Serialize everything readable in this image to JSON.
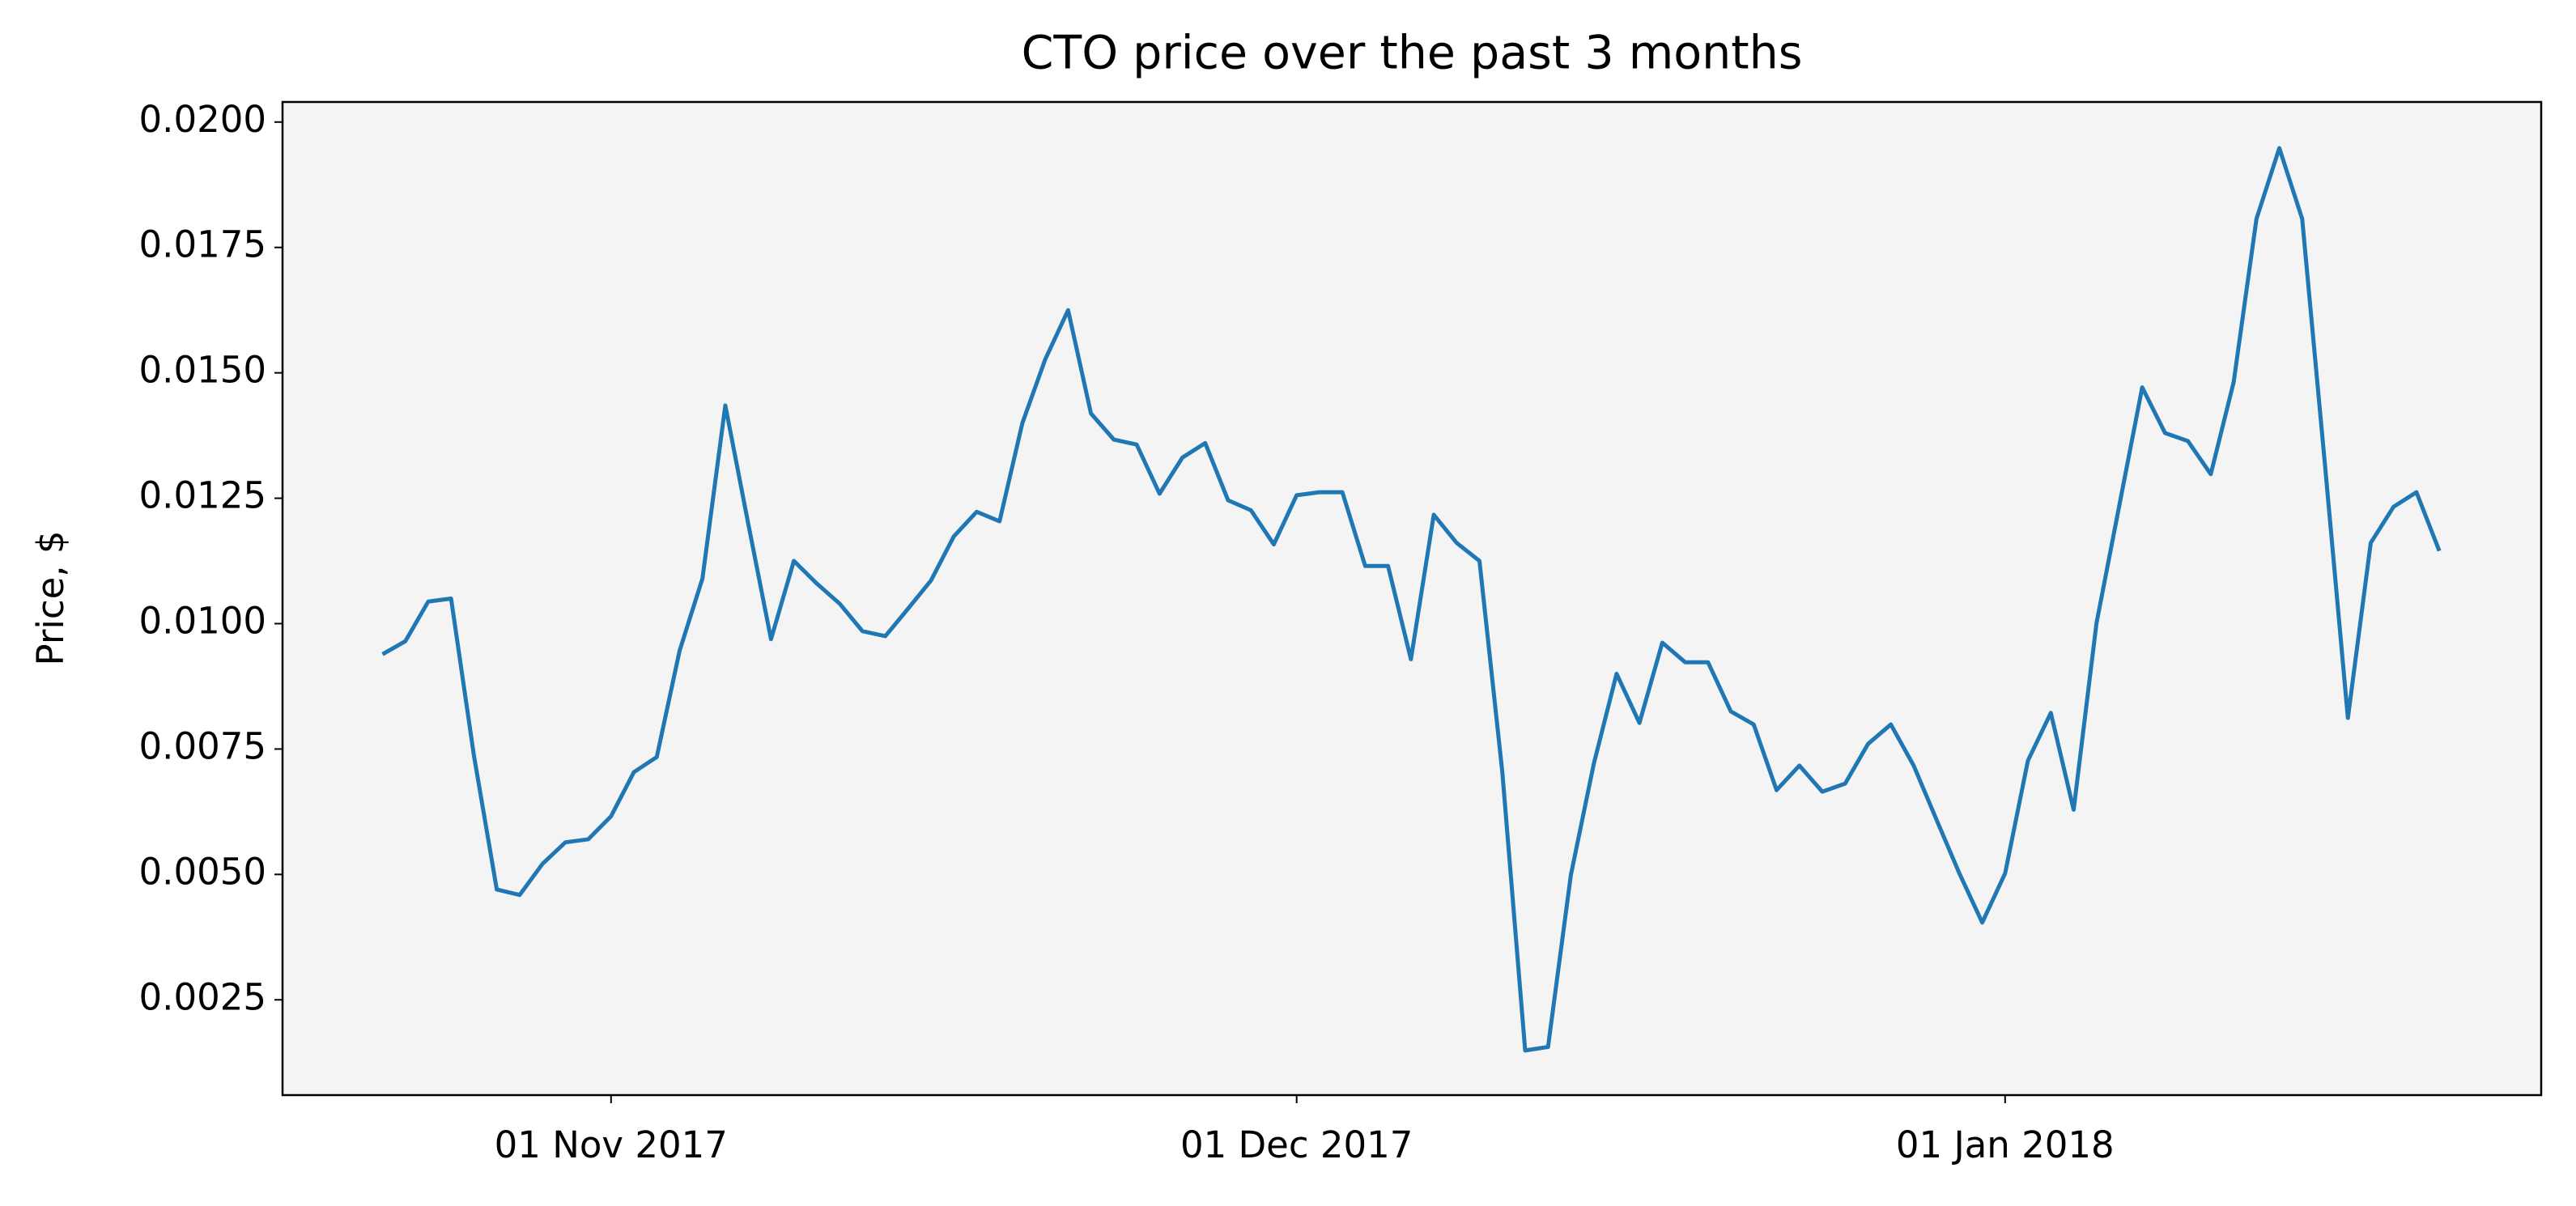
{
  "chart_data": {
    "type": "line",
    "title": "CTO price over the past 3 months",
    "ylabel": "Price, $",
    "x": [
      "2017-10-22",
      "2017-10-23",
      "2017-10-24",
      "2017-10-25",
      "2017-10-26",
      "2017-10-27",
      "2017-10-28",
      "2017-10-29",
      "2017-10-30",
      "2017-10-31",
      "2017-11-01",
      "2017-11-02",
      "2017-11-03",
      "2017-11-04",
      "2017-11-05",
      "2017-11-06",
      "2017-11-07",
      "2017-11-08",
      "2017-11-09",
      "2017-11-10",
      "2017-11-11",
      "2017-11-12",
      "2017-11-13",
      "2017-11-14",
      "2017-11-15",
      "2017-11-16",
      "2017-11-17",
      "2017-11-18",
      "2017-11-19",
      "2017-11-20",
      "2017-11-21",
      "2017-11-22",
      "2017-11-23",
      "2017-11-24",
      "2017-11-25",
      "2017-11-26",
      "2017-11-27",
      "2017-11-28",
      "2017-11-29",
      "2017-11-30",
      "2017-12-01",
      "2017-12-02",
      "2017-12-03",
      "2017-12-04",
      "2017-12-05",
      "2017-12-06",
      "2017-12-07",
      "2017-12-08",
      "2017-12-09",
      "2017-12-10",
      "2017-12-11",
      "2017-12-12",
      "2017-12-13",
      "2017-12-14",
      "2017-12-15",
      "2017-12-16",
      "2017-12-17",
      "2017-12-18",
      "2017-12-19",
      "2017-12-20",
      "2017-12-21",
      "2017-12-22",
      "2017-12-23",
      "2017-12-24",
      "2017-12-25",
      "2017-12-26",
      "2017-12-27",
      "2017-12-28",
      "2017-12-29",
      "2017-12-30",
      "2017-12-31",
      "2018-01-01",
      "2018-01-02",
      "2018-01-03",
      "2018-01-04",
      "2018-01-05",
      "2018-01-06",
      "2018-01-07",
      "2018-01-08",
      "2018-01-09",
      "2018-01-10",
      "2018-01-11",
      "2018-01-12",
      "2018-01-13",
      "2018-01-14",
      "2018-01-15",
      "2018-01-16",
      "2018-01-17",
      "2018-01-18",
      "2018-01-19",
      "2018-01-20"
    ],
    "series": [
      {
        "color": "#1f77b4",
        "values": [
          0.00939,
          0.00965,
          0.01044,
          0.0105,
          0.00737,
          0.0047,
          0.00459,
          0.00521,
          0.00564,
          0.0057,
          0.00616,
          0.00704,
          0.00734,
          0.00946,
          0.0109,
          0.01435,
          0.012,
          0.00969,
          0.01125,
          0.0108,
          0.0104,
          0.00985,
          0.00975,
          0.0103,
          0.01086,
          0.01174,
          0.01223,
          0.01204,
          0.014,
          0.01527,
          0.01625,
          0.01419,
          0.01367,
          0.01357,
          0.01259,
          0.01331,
          0.0136,
          0.01246,
          0.01226,
          0.01158,
          0.01256,
          0.01262,
          0.01262,
          0.01115,
          0.01115,
          0.00929,
          0.01217,
          0.01161,
          0.01125,
          0.00704,
          0.00149,
          0.00156,
          0.00499,
          0.0072,
          0.009,
          0.00802,
          0.00962,
          0.00923,
          0.00923,
          0.00825,
          0.00799,
          0.00668,
          0.00717,
          0.00665,
          0.00681,
          0.0076,
          0.00799,
          0.00717,
          0.00609,
          0.00502,
          0.00404,
          0.00502,
          0.00727,
          0.00822,
          0.00629,
          0.01001,
          0.01236,
          0.01471,
          0.0138,
          0.01364,
          0.01298,
          0.01481,
          0.01807,
          0.01948,
          0.01807,
          0.01315,
          0.00812,
          0.01161,
          0.01233,
          0.01262,
          0.01145
        ]
      }
    ],
    "xlim": [
      "2017-10-17T15:00:00Z",
      "2018-01-24T11:00:00Z"
    ],
    "xticks": [
      {
        "value": "2017-11-01",
        "label": "01 Nov 2017"
      },
      {
        "value": "2017-12-01",
        "label": "01 Dec 2017"
      },
      {
        "value": "2018-01-01",
        "label": "01 Jan 2018"
      }
    ],
    "ylim": [
      0.0006,
      0.0204
    ],
    "yticks": [
      0.0025,
      {
        "value": 0.005,
        "label": "0.0050"
      },
      0.0075,
      {
        "value": 0.01,
        "label": "0.0100"
      },
      0.0125,
      {
        "value": 0.015,
        "label": "0.0150"
      },
      0.0175,
      {
        "value": 0.02,
        "label": "0.0200"
      }
    ],
    "background": "#f4f4f4"
  }
}
